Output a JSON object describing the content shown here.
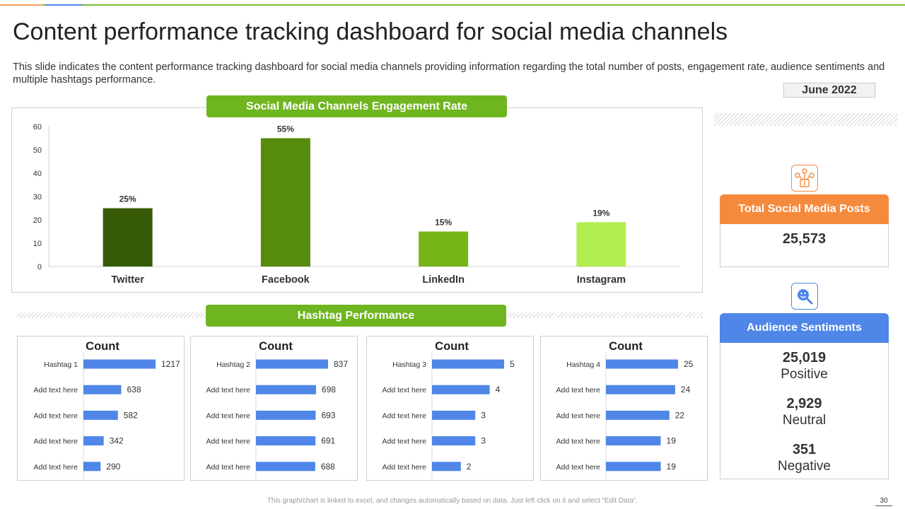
{
  "page": {
    "title": "Content performance tracking dashboard for social media channels",
    "subtitle": "This slide indicates the content performance tracking dashboard for social media channels providing information regarding the total number of posts, engagement rate, audience sentiments and multiple hashtags performance.",
    "date": "June 2022",
    "footer_note": "This graph/chart is linked to excel, and changes automatically based on data. Just left click on it and select “Edit Data”.",
    "page_number": "30"
  },
  "colors": {
    "accent_green": "#6fb51f",
    "orange": "#f58a3c",
    "blue": "#4f86e8",
    "bar_blue": "#4f86e8"
  },
  "icons": {
    "posts": "social-network-icon",
    "sentiment": "magnifier-smiley-icon"
  },
  "stats": {
    "posts": {
      "header": "Total Social Media Posts",
      "value": "25,573"
    },
    "sentiments": {
      "header": "Audience Sentiments",
      "positive_value": "25,019",
      "positive_label": "Positive",
      "neutral_value": "2,929",
      "neutral_label": "Neutral",
      "negative_value": "351",
      "negative_label": "Negative"
    }
  },
  "hashtag_section": {
    "title": "Hashtag Performance"
  },
  "chart_data": [
    {
      "type": "bar",
      "title": "Social Media Channels Engagement Rate",
      "categories": [
        "Twitter",
        "Facebook",
        "LinkedIn",
        "Instagram"
      ],
      "values": [
        25,
        55,
        15,
        19
      ],
      "data_labels": [
        "25%",
        "55%",
        "15%",
        "19%"
      ],
      "bar_colors": [
        "#375a07",
        "#568b0e",
        "#76b516",
        "#b2ee4f"
      ],
      "ylim": [
        0,
        60
      ],
      "yticks": [
        0,
        10,
        20,
        30,
        40,
        50,
        60
      ],
      "grid": false
    },
    {
      "type": "bar",
      "orientation": "horizontal",
      "title": "Count",
      "categories": [
        "Hashtag 1",
        "Add text here",
        "Add text here",
        "Add text here",
        "Add text here"
      ],
      "values": [
        1217,
        638,
        582,
        342,
        290
      ]
    },
    {
      "type": "bar",
      "orientation": "horizontal",
      "title": "Count",
      "categories": [
        "Hashtag 2",
        "Add text here",
        "Add text here",
        "Add text here",
        "Add text here"
      ],
      "values": [
        837,
        698,
        693,
        691,
        688
      ]
    },
    {
      "type": "bar",
      "orientation": "horizontal",
      "title": "Count",
      "categories": [
        "Hashtag 3",
        "Add text here",
        "Add text here",
        "Add text here",
        "Add text here"
      ],
      "values": [
        5,
        4,
        3,
        3,
        2
      ]
    },
    {
      "type": "bar",
      "orientation": "horizontal",
      "title": "Count",
      "categories": [
        "Hashtag 4",
        "Add text here",
        "Add text here",
        "Add text here",
        "Add text here"
      ],
      "values": [
        25,
        24,
        22,
        19,
        19
      ]
    }
  ]
}
